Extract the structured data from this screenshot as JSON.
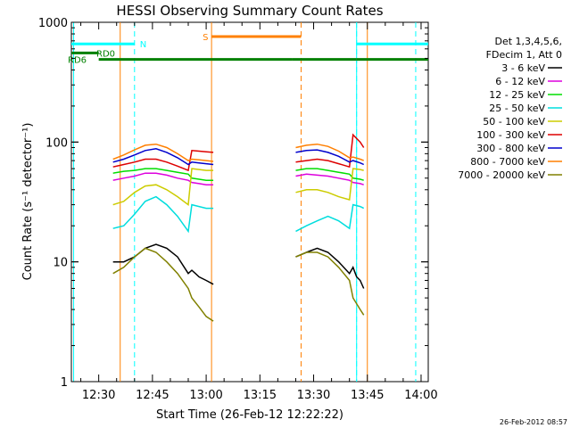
{
  "chart_data": {
    "type": "line",
    "title": "HESSI Observing Summary Count Rates",
    "xlabel": "Start Time (26-Feb-12 12:22:22)",
    "ylabel": "Count Rate (s⁻¹ detector⁻¹)",
    "y_scale": "log",
    "ylim": [
      1,
      1000
    ],
    "xlim": [
      "12:22:22",
      "14:02:00"
    ],
    "x_ticks": [
      "12:30",
      "12:45",
      "13:00",
      "13:15",
      "13:30",
      "13:45",
      "14:00"
    ],
    "y_ticks": [
      "1",
      "10",
      "100",
      "1000"
    ],
    "footer_timestamp": "26-Feb-2012 08:57",
    "legend_header": [
      "Det 1,3,4,5,6,",
      "FDecim 1, Att 0"
    ],
    "series": [
      {
        "name": "3 - 6 keV",
        "color": "#000000",
        "x": [
          "12:34",
          "12:37",
          "12:40",
          "12:43",
          "12:46",
          "12:49",
          "12:52",
          "12:55",
          "12:56",
          "12:57",
          "12:58",
          "13:00",
          "13:02",
          "13:25",
          "13:28",
          "13:31",
          "13:34",
          "13:37",
          "13:40",
          "13:41",
          "13:42",
          "13:43",
          "13:44"
        ],
        "y": [
          10,
          10,
          11,
          13,
          14,
          13,
          11,
          8,
          8.5,
          8,
          7.5,
          7,
          6.5,
          11,
          12,
          13,
          12,
          10,
          8,
          9,
          7.5,
          7,
          6
        ]
      },
      {
        "name": "6 - 12 keV",
        "color": "#dd00dd",
        "x": [
          "12:34",
          "12:37",
          "12:40",
          "12:43",
          "12:46",
          "12:49",
          "12:52",
          "12:55",
          "12:56",
          "12:58",
          "13:00",
          "13:02",
          "13:25",
          "13:28",
          "13:31",
          "13:34",
          "13:37",
          "13:40",
          "13:41",
          "13:43",
          "13:44"
        ],
        "y": [
          48,
          50,
          52,
          55,
          55,
          53,
          50,
          48,
          46,
          45,
          44,
          44,
          52,
          54,
          53,
          52,
          50,
          48,
          46,
          45,
          44
        ]
      },
      {
        "name": "12 - 25 keV",
        "color": "#00dd00",
        "x": [
          "12:34",
          "12:37",
          "12:40",
          "12:43",
          "12:46",
          "12:49",
          "12:52",
          "12:55",
          "12:56",
          "12:58",
          "13:00",
          "13:02",
          "13:25",
          "13:28",
          "13:31",
          "13:34",
          "13:37",
          "13:40",
          "13:41",
          "13:43",
          "13:44"
        ],
        "y": [
          55,
          57,
          58,
          60,
          60,
          58,
          56,
          54,
          50,
          49,
          48,
          48,
          58,
          60,
          60,
          58,
          56,
          54,
          50,
          49,
          48
        ]
      },
      {
        "name": "25 - 50 keV",
        "color": "#00dddd",
        "x": [
          "12:34",
          "12:37",
          "12:40",
          "12:43",
          "12:46",
          "12:49",
          "12:52",
          "12:55",
          "12:56",
          "12:58",
          "13:00",
          "13:02",
          "13:25",
          "13:28",
          "13:31",
          "13:34",
          "13:37",
          "13:40",
          "13:41",
          "13:43",
          "13:44"
        ],
        "y": [
          19,
          20,
          25,
          32,
          35,
          30,
          24,
          18,
          30,
          29,
          28,
          28,
          18,
          20,
          22,
          24,
          22,
          19,
          30,
          29,
          28
        ]
      },
      {
        "name": "50 - 100 keV",
        "color": "#cccc00",
        "x": [
          "12:34",
          "12:37",
          "12:40",
          "12:43",
          "12:46",
          "12:49",
          "12:52",
          "12:55",
          "12:56",
          "12:58",
          "13:00",
          "13:02",
          "13:25",
          "13:28",
          "13:31",
          "13:34",
          "13:37",
          "13:40",
          "13:41",
          "13:43",
          "13:44"
        ],
        "y": [
          30,
          32,
          38,
          43,
          44,
          40,
          35,
          30,
          60,
          59,
          58,
          58,
          38,
          40,
          40,
          38,
          35,
          33,
          60,
          59,
          58
        ]
      },
      {
        "name": "100 - 300 keV",
        "color": "#dd0000",
        "x": [
          "12:34",
          "12:37",
          "12:40",
          "12:43",
          "12:46",
          "12:49",
          "12:52",
          "12:55",
          "12:56",
          "12:58",
          "13:00",
          "13:02",
          "13:25",
          "13:28",
          "13:31",
          "13:34",
          "13:37",
          "13:40",
          "13:41",
          "13:43",
          "13:44"
        ],
        "y": [
          62,
          65,
          68,
          72,
          72,
          68,
          63,
          58,
          85,
          84,
          83,
          82,
          68,
          70,
          72,
          70,
          66,
          62,
          115,
          100,
          90
        ]
      },
      {
        "name": "300 - 800 keV",
        "color": "#0000cc",
        "x": [
          "12:34",
          "12:37",
          "12:40",
          "12:43",
          "12:46",
          "12:49",
          "12:52",
          "12:55",
          "12:56",
          "12:58",
          "13:00",
          "13:02",
          "13:25",
          "13:28",
          "13:31",
          "13:34",
          "13:37",
          "13:40",
          "13:41",
          "13:43",
          "13:44"
        ],
        "y": [
          68,
          72,
          78,
          85,
          88,
          82,
          74,
          65,
          68,
          67,
          66,
          65,
          82,
          85,
          86,
          82,
          76,
          68,
          70,
          67,
          65
        ]
      },
      {
        "name": "800 - 7000 keV",
        "color": "#ff7f00",
        "x": [
          "12:34",
          "12:37",
          "12:40",
          "12:43",
          "12:46",
          "12:49",
          "12:52",
          "12:55",
          "12:56",
          "12:58",
          "13:00",
          "13:02",
          "13:25",
          "13:28",
          "13:31",
          "13:34",
          "13:37",
          "13:40",
          "13:41",
          "13:43",
          "13:44"
        ],
        "y": [
          72,
          78,
          86,
          94,
          96,
          90,
          80,
          70,
          72,
          71,
          70,
          69,
          90,
          94,
          96,
          92,
          84,
          74,
          75,
          72,
          70
        ]
      },
      {
        "name": "7000 - 20000 keV",
        "color": "#808000",
        "x": [
          "12:34",
          "12:37",
          "12:40",
          "12:43",
          "12:46",
          "12:49",
          "12:52",
          "12:55",
          "12:56",
          "12:58",
          "13:00",
          "13:02",
          "13:25",
          "13:28",
          "13:31",
          "13:34",
          "13:37",
          "13:40",
          "13:41",
          "13:43",
          "13:44"
        ],
        "y": [
          8,
          9,
          11,
          13,
          12,
          10,
          8,
          6,
          5,
          4.2,
          3.5,
          3.2,
          11,
          12,
          12,
          11,
          9,
          7,
          5,
          4,
          3.6
        ]
      }
    ],
    "flag_segments": [
      {
        "label": "N",
        "color": "#00ffff",
        "y": 660,
        "segments": [
          [
            "12:22:22",
            "12:40:00"
          ],
          [
            "13:42:00",
            "14:02:00"
          ]
        ]
      },
      {
        "label": "RD0",
        "color": "#008000",
        "y": 555,
        "segments": [
          [
            "12:22:22",
            "12:30:00"
          ]
        ]
      },
      {
        "label": "RD6",
        "color": "#008000",
        "y": 490,
        "segments": [
          [
            "12:30:00",
            "12:54:00"
          ],
          [
            "12:54:00",
            "13:24:00"
          ],
          [
            "13:24:00",
            "13:42:00"
          ],
          [
            "13:42:00",
            "14:02:00"
          ]
        ]
      },
      {
        "label": "S",
        "color": "#ff8000",
        "y": 760,
        "segments": [
          [
            "13:01:30",
            "13:26:30"
          ]
        ]
      }
    ],
    "vertical_markers": [
      {
        "x": "12:23:00",
        "color": "#00ffff",
        "style": "solid"
      },
      {
        "x": "12:40:00",
        "color": "#00ffff",
        "style": "dashed"
      },
      {
        "x": "13:42:00",
        "color": "#00ffff",
        "style": "dashed"
      },
      {
        "x": "13:58:30",
        "color": "#00ffff",
        "style": "dashed"
      },
      {
        "x": "13:42:00",
        "color": "#00ffff",
        "style": "solid"
      },
      {
        "x": "12:36:00",
        "color": "#ff8000",
        "style": "solid"
      },
      {
        "x": "13:01:30",
        "color": "#ff8000",
        "style": "solid"
      },
      {
        "x": "13:26:30",
        "color": "#ff8000",
        "style": "dashed"
      },
      {
        "x": "13:45:00",
        "color": "#ff8000",
        "style": "solid"
      }
    ],
    "grid": false,
    "legend_position": "right"
  }
}
